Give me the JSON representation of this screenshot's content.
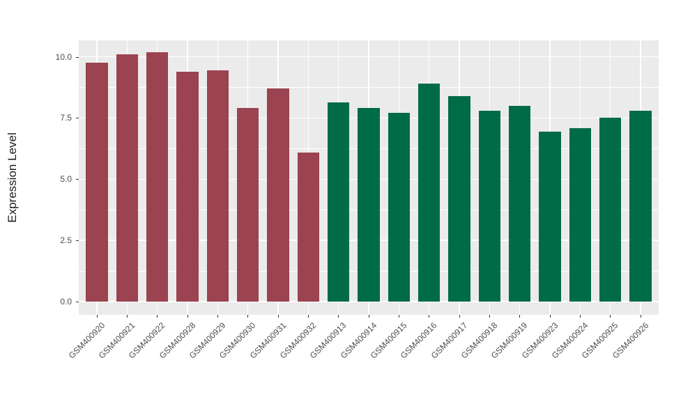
{
  "figure": {
    "background": "#FFFFFF",
    "panel_background": "#EBEBEB",
    "grid_color": "#FFFFFF",
    "axis_text_color": "#4D4D4D",
    "axis_title_color": "#1A1A1A",
    "group_colors": {
      "left_group_red": "#9B4350",
      "right_group_green": "#006B47"
    }
  },
  "chart_data": {
    "type": "bar",
    "title": "",
    "xlabel": "",
    "ylabel": "Expression Level",
    "ylim": [
      0,
      10.7
    ],
    "yticks": [
      0,
      2.5,
      5,
      7.5,
      10
    ],
    "ytick_labels": [
      "0.0",
      "2.5",
      "5.0",
      "7.5",
      "10.0"
    ],
    "minor_yticks": [
      1.25,
      3.75,
      6.25,
      8.75
    ],
    "grid": "on",
    "legend_position": "none",
    "categories": [
      "GSM400920",
      "GSM400921",
      "GSM400922",
      "GSM400928",
      "GSM400929",
      "GSM400930",
      "GSM400931",
      "GSM400932",
      "GSM400913",
      "GSM400914",
      "GSM400915",
      "GSM400916",
      "GSM400917",
      "GSM400918",
      "GSM400919",
      "GSM400923",
      "GSM400924",
      "GSM400925",
      "GSM400926"
    ],
    "values": [
      9.75,
      10.1,
      10.2,
      9.4,
      9.45,
      7.9,
      8.7,
      6.1,
      8.15,
      7.9,
      7.7,
      8.9,
      8.4,
      7.8,
      8.0,
      6.95,
      7.1,
      7.5,
      7.8
    ],
    "bar_colors": [
      "#9B4350",
      "#9B4350",
      "#9B4350",
      "#9B4350",
      "#9B4350",
      "#9B4350",
      "#9B4350",
      "#9B4350",
      "#006B47",
      "#006B47",
      "#006B47",
      "#006B47",
      "#006B47",
      "#006B47",
      "#006B47",
      "#006B47",
      "#006B47",
      "#006B47",
      "#006B47"
    ]
  }
}
